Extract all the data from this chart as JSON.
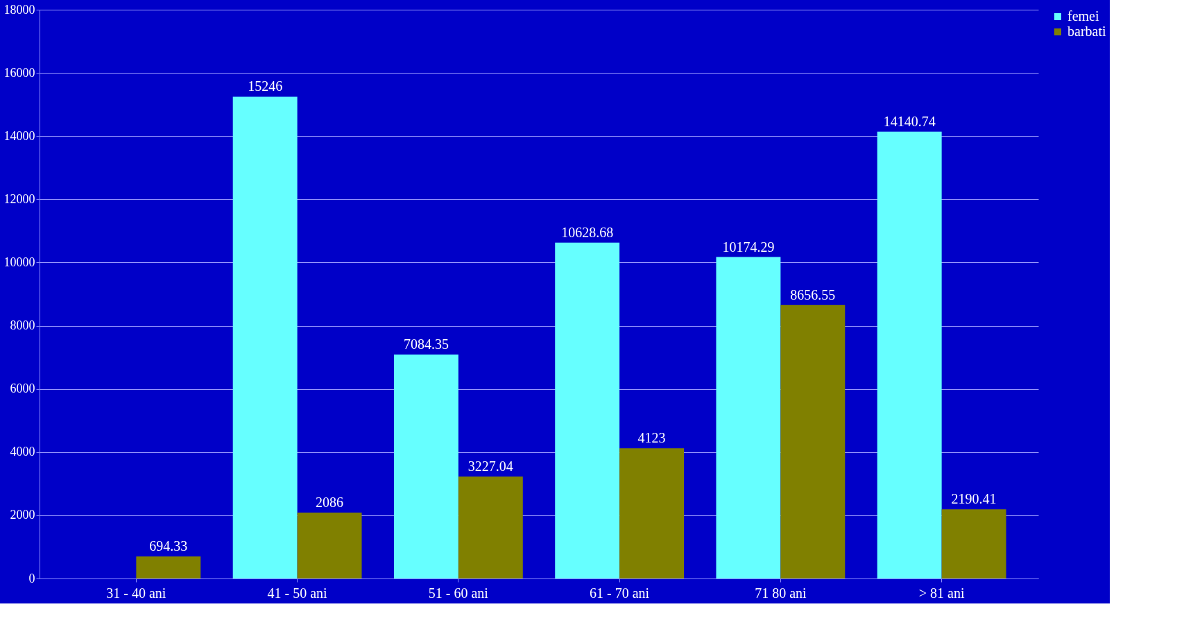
{
  "chart_data": {
    "type": "bar",
    "categories": [
      "31 - 40 ani",
      "41 - 50 ani",
      "51 - 60 ani",
      "61 - 70 ani",
      "71 80 ani",
      "> 81 ani"
    ],
    "series": [
      {
        "name": "femei",
        "color": "#66ffff",
        "values": [
          null,
          15246,
          7084.35,
          10628.68,
          10174.29,
          14140.74
        ]
      },
      {
        "name": "barbati",
        "color": "#808000",
        "values": [
          694.33,
          2086,
          3227.04,
          4123,
          8656.55,
          2190.41
        ]
      }
    ],
    "ylim": [
      0,
      18000
    ],
    "yticks": [
      0,
      2000,
      4000,
      6000,
      8000,
      10000,
      12000,
      14000,
      16000,
      18000
    ],
    "grid": "y",
    "legend": "right",
    "data_labels": true
  }
}
